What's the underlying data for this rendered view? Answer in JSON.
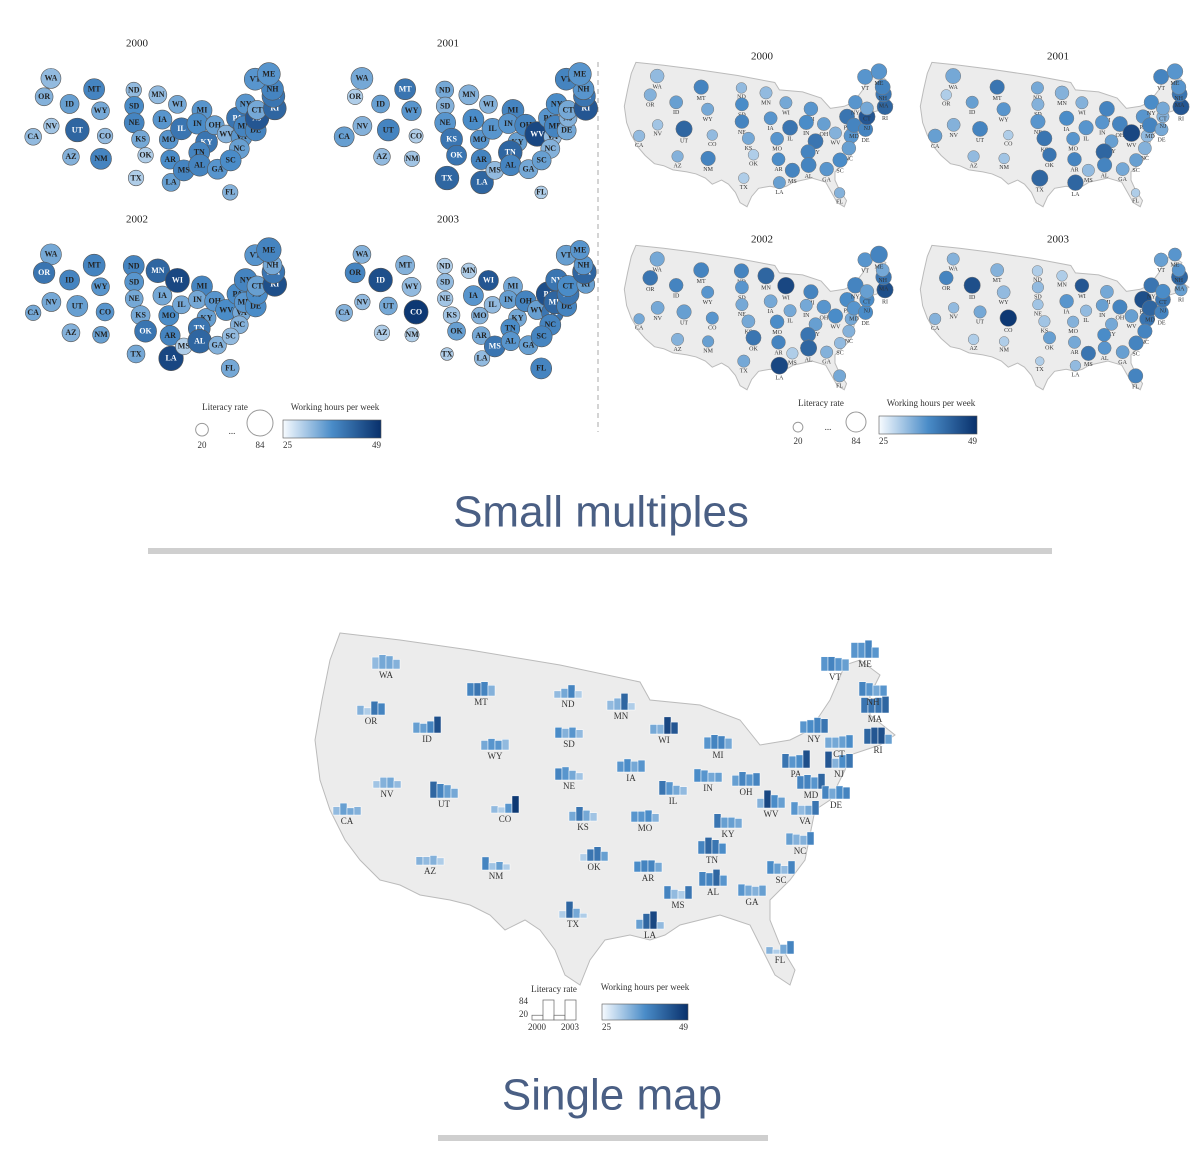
{
  "title_small": "Small multiples",
  "title_single": "Single map",
  "years": [
    2000,
    2001,
    2002,
    2003
  ],
  "legend": {
    "size_title": "Literacy rate",
    "color_title": "Working hours per week",
    "ellipsis": "...",
    "size_min": 20,
    "size_max": 84,
    "color_min": 25,
    "color_max": 49
  },
  "states": [
    {
      "abbr": "WA",
      "literacy": [
        50,
        60,
        55,
        40
      ],
      "hours": [
        32,
        34,
        34,
        33
      ]
    },
    {
      "abbr": "OR",
      "literacy": [
        40,
        30,
        58,
        50
      ],
      "hours": [
        33,
        30,
        40,
        38
      ]
    },
    {
      "abbr": "CA",
      "literacy": [
        35,
        50,
        30,
        35
      ],
      "hours": [
        32,
        35,
        34,
        33
      ]
    },
    {
      "abbr": "NV",
      "literacy": [
        30,
        45,
        45,
        30
      ],
      "hours": [
        31,
        33,
        34,
        32
      ]
    },
    {
      "abbr": "ID",
      "literacy": [
        45,
        40,
        50,
        70
      ],
      "hours": [
        35,
        35,
        38,
        45
      ]
    },
    {
      "abbr": "MT",
      "literacy": [
        55,
        55,
        60,
        45
      ],
      "hours": [
        38,
        40,
        38,
        33
      ]
    },
    {
      "abbr": "WY",
      "literacy": [
        40,
        48,
        40,
        45
      ],
      "hours": [
        34,
        36,
        36,
        32
      ]
    },
    {
      "abbr": "UT",
      "literacy": [
        70,
        60,
        55,
        40
      ],
      "hours": [
        42,
        38,
        35,
        34
      ]
    },
    {
      "abbr": "CO",
      "literacy": [
        30,
        25,
        40,
        72
      ],
      "hours": [
        32,
        30,
        36,
        48
      ]
    },
    {
      "abbr": "AZ",
      "literacy": [
        35,
        35,
        40,
        30
      ],
      "hours": [
        33,
        32,
        33,
        30
      ]
    },
    {
      "abbr": "NM",
      "literacy": [
        55,
        30,
        35,
        25
      ],
      "hours": [
        38,
        31,
        35,
        30
      ]
    },
    {
      "abbr": "ND",
      "literacy": [
        30,
        40,
        55,
        30
      ],
      "hours": [
        32,
        34,
        38,
        30
      ]
    },
    {
      "abbr": "SD",
      "literacy": [
        45,
        40,
        45,
        35
      ],
      "hours": [
        37,
        33,
        36,
        32
      ]
    },
    {
      "abbr": "NE",
      "literacy": [
        50,
        55,
        40,
        30
      ],
      "hours": [
        38,
        36,
        34,
        31
      ]
    },
    {
      "abbr": "KS",
      "literacy": [
        40,
        60,
        45,
        35
      ],
      "hours": [
        34,
        40,
        34,
        31
      ]
    },
    {
      "abbr": "OK",
      "literacy": [
        30,
        50,
        60,
        40
      ],
      "hours": [
        30,
        40,
        40,
        35
      ]
    },
    {
      "abbr": "TX",
      "literacy": [
        30,
        70,
        40,
        20
      ],
      "hours": [
        30,
        42,
        34,
        30
      ]
    },
    {
      "abbr": "MN",
      "literacy": [
        40,
        50,
        70,
        30
      ],
      "hours": [
        32,
        33,
        42,
        30
      ]
    },
    {
      "abbr": "IA",
      "literacy": [
        45,
        55,
        45,
        50
      ],
      "hours": [
        36,
        37,
        34,
        36
      ]
    },
    {
      "abbr": "MO",
      "literacy": [
        45,
        45,
        50,
        35
      ],
      "hours": [
        36,
        36,
        37,
        33
      ]
    },
    {
      "abbr": "AR",
      "literacy": [
        45,
        50,
        50,
        40
      ],
      "hours": [
        37,
        38,
        38,
        34
      ]
    },
    {
      "abbr": "LA",
      "literacy": [
        40,
        65,
        75,
        30
      ],
      "hours": [
        35,
        42,
        46,
        32
      ]
    },
    {
      "abbr": "WI",
      "literacy": [
        40,
        40,
        72,
        50
      ],
      "hours": [
        34,
        33,
        46,
        44
      ]
    },
    {
      "abbr": "IL",
      "literacy": [
        60,
        55,
        40,
        35
      ],
      "hours": [
        40,
        36,
        34,
        32
      ]
    },
    {
      "abbr": "MS",
      "literacy": [
        55,
        40,
        35,
        55
      ],
      "hours": [
        38,
        32,
        30,
        40
      ]
    },
    {
      "abbr": "MI",
      "literacy": [
        50,
        60,
        55,
        45
      ],
      "hours": [
        36,
        38,
        38,
        34
      ]
    },
    {
      "abbr": "IN",
      "literacy": [
        55,
        50,
        40,
        40
      ],
      "hours": [
        37,
        36,
        34,
        35
      ]
    },
    {
      "abbr": "KY",
      "literacy": [
        60,
        45,
        45,
        40
      ],
      "hours": [
        40,
        35,
        35,
        34
      ]
    },
    {
      "abbr": "TN",
      "literacy": [
        55,
        70,
        60,
        45
      ],
      "hours": [
        38,
        42,
        40,
        37
      ]
    },
    {
      "abbr": "AL",
      "literacy": [
        60,
        55,
        70,
        45
      ],
      "hours": [
        38,
        38,
        42,
        36
      ]
    },
    {
      "abbr": "GA",
      "literacy": [
        50,
        45,
        40,
        45
      ],
      "hours": [
        36,
        34,
        33,
        35
      ]
    },
    {
      "abbr": "FL",
      "literacy": [
        30,
        20,
        40,
        55
      ],
      "hours": [
        33,
        30,
        34,
        38
      ]
    },
    {
      "abbr": "OH",
      "literacy": [
        45,
        60,
        50,
        55
      ],
      "hours": [
        35,
        38,
        36,
        38
      ]
    },
    {
      "abbr": "WV",
      "literacy": [
        40,
        75,
        55,
        45
      ],
      "hours": [
        33,
        46,
        37,
        35
      ]
    },
    {
      "abbr": "VA",
      "literacy": [
        55,
        40,
        40,
        60
      ],
      "hours": [
        36,
        32,
        34,
        40
      ]
    },
    {
      "abbr": "NC",
      "literacy": [
        50,
        45,
        40,
        55
      ],
      "hours": [
        35,
        33,
        33,
        38
      ]
    },
    {
      "abbr": "SC",
      "literacy": [
        55,
        45,
        35,
        55
      ],
      "hours": [
        37,
        35,
        32,
        38
      ]
    },
    {
      "abbr": "PA",
      "literacy": [
        60,
        50,
        55,
        75
      ],
      "hours": [
        40,
        36,
        37,
        45
      ]
    },
    {
      "abbr": "NY",
      "literacy": [
        50,
        55,
        65,
        60
      ],
      "hours": [
        36,
        37,
        38,
        40
      ]
    },
    {
      "abbr": "MD",
      "literacy": [
        55,
        60,
        50,
        65
      ],
      "hours": [
        38,
        38,
        36,
        42
      ]
    },
    {
      "abbr": "DE",
      "literacy": [
        55,
        45,
        55,
        50
      ],
      "hours": [
        38,
        34,
        37,
        38
      ]
    },
    {
      "abbr": "NJ",
      "literacy": [
        70,
        40,
        55,
        60
      ],
      "hours": [
        44,
        33,
        37,
        40
      ]
    },
    {
      "abbr": "CT",
      "literacy": [
        45,
        45,
        50,
        55
      ],
      "hours": [
        34,
        34,
        35,
        37
      ]
    },
    {
      "abbr": "RI",
      "literacy": [
        65,
        70,
        70,
        40
      ],
      "hours": [
        42,
        44,
        45,
        35
      ]
    },
    {
      "abbr": "MA",
      "literacy": [
        65,
        60,
        65,
        70
      ],
      "hours": [
        40,
        40,
        40,
        42
      ]
    },
    {
      "abbr": "NH",
      "literacy": [
        60,
        55,
        45,
        45
      ],
      "hours": [
        38,
        36,
        34,
        36
      ]
    },
    {
      "abbr": "VT",
      "literacy": [
        60,
        60,
        55,
        50
      ],
      "hours": [
        36,
        38,
        36,
        35
      ]
    },
    {
      "abbr": "ME",
      "literacy": [
        65,
        65,
        75,
        45
      ],
      "hours": [
        36,
        36,
        38,
        36
      ]
    }
  ]
}
